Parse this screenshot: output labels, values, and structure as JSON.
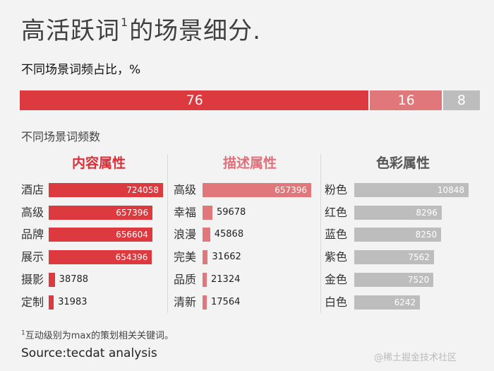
{
  "title": {
    "main": "高活跃词",
    "sup": "1",
    "rest": "的场景细分."
  },
  "subtitle_share": "不同场景词频占比，%",
  "subtitle_counts": "不同场景词频数",
  "footnote": {
    "sup": "1",
    "text": "互动级别为max的策划相关关键词。"
  },
  "source": "Source:tecdat analysis",
  "watermark": "@稀土掘金技术社区",
  "colors": {
    "dark_red": "#dc3a3f",
    "light_red": "#e0787b",
    "gray": "#bdbdbd"
  },
  "chart_data": [
    {
      "type": "bar",
      "orientation": "horizontal-stacked",
      "ylabel": "不同场景词频占比，%",
      "categories": [
        "内容属性",
        "描述属性",
        "色彩属性"
      ],
      "values": [
        76,
        16,
        8
      ],
      "colors": [
        "#dc3a3f",
        "#e0787b",
        "#bdbdbd"
      ]
    },
    {
      "type": "bar",
      "orientation": "horizontal",
      "title": "内容属性",
      "color": "#dc3a3f",
      "title_color": "#d92f36",
      "categories": [
        "酒店",
        "高级",
        "品牌",
        "展示",
        "摄影",
        "定制"
      ],
      "values": [
        724058,
        657396,
        656604,
        654396,
        38788,
        31983
      ]
    },
    {
      "type": "bar",
      "orientation": "horizontal",
      "title": "描述属性",
      "color": "#e0787b",
      "title_color": "#e0707a",
      "categories": [
        "高级",
        "幸福",
        "浪漫",
        "完美",
        "品质",
        "清新"
      ],
      "values": [
        657396,
        59678,
        45868,
        31662,
        21324,
        17564
      ]
    },
    {
      "type": "bar",
      "orientation": "horizontal",
      "title": "色彩属性",
      "color": "#bdbdbd",
      "title_color": "#555555",
      "categories": [
        "粉色",
        "红色",
        "蓝色",
        "紫色",
        "金色",
        "白色"
      ],
      "values": [
        10848,
        8296,
        8250,
        7562,
        7520,
        6242
      ]
    }
  ]
}
